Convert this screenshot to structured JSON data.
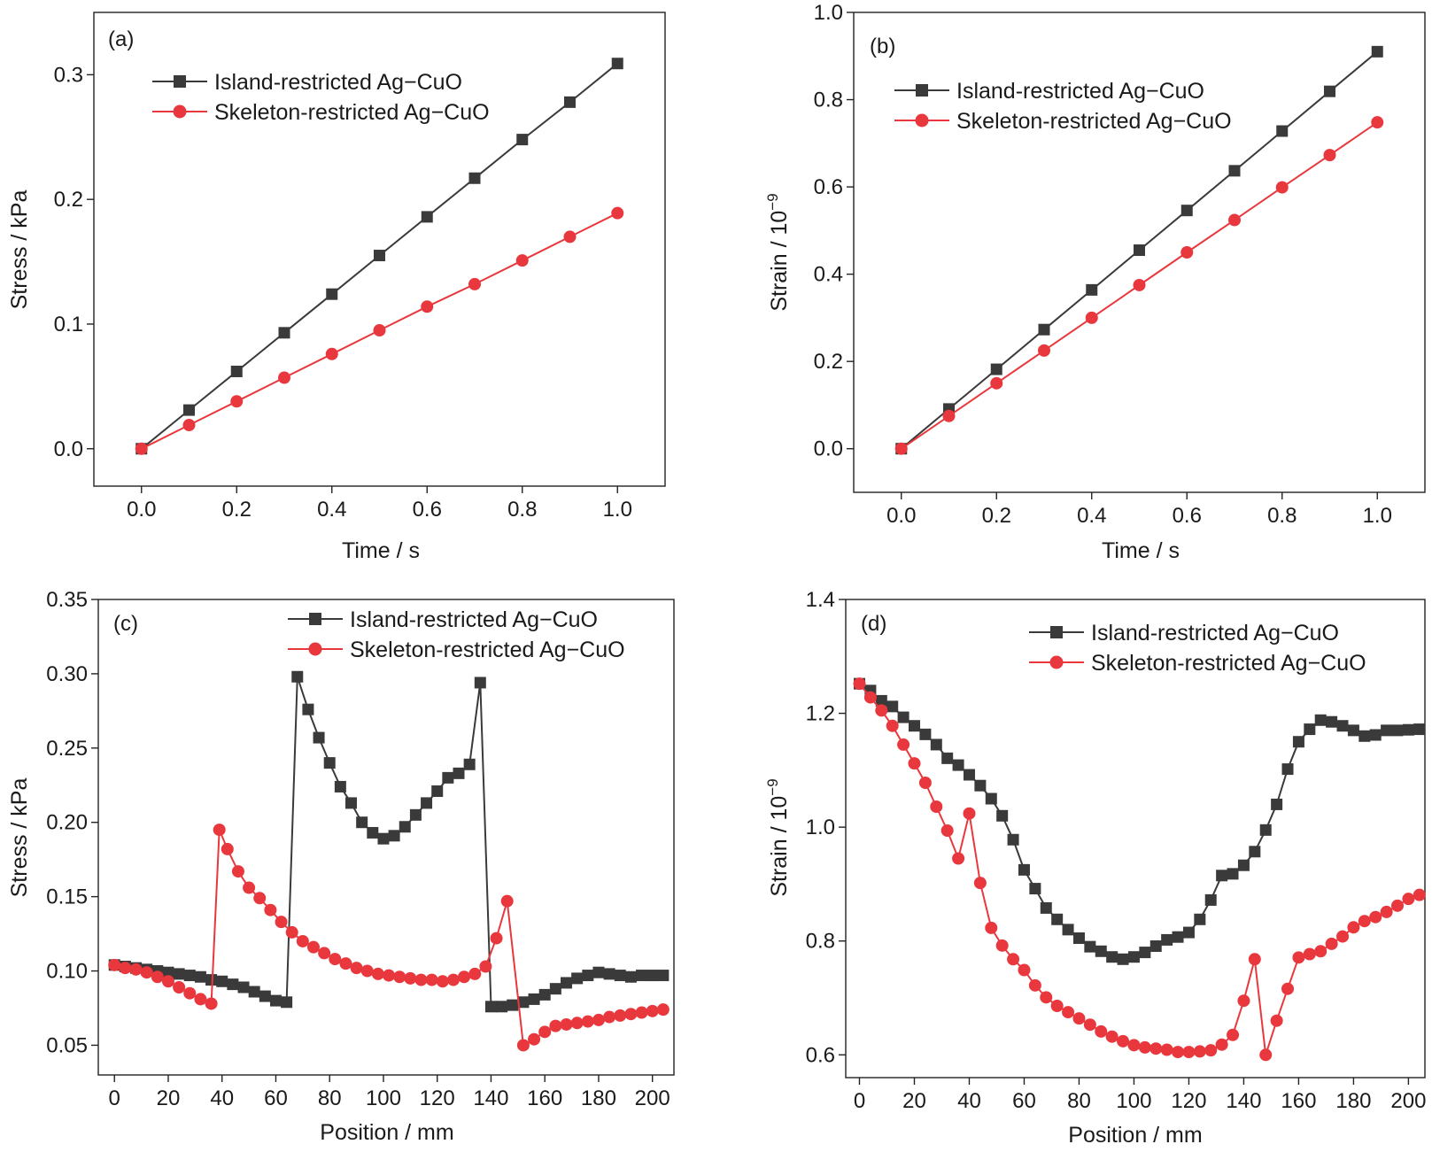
{
  "colors": {
    "island": "#3a3a3a",
    "skeleton": "#e8383d",
    "frame": "#222222",
    "background": "#ffffff"
  },
  "icons": {
    "island_marker": "square-marker",
    "skeleton_marker": "circle-marker"
  },
  "chart_data": [
    {
      "id": "a",
      "type": "line",
      "panel_label": "(a)",
      "xlabel": "Time / s",
      "ylabel": "Stress / kPa",
      "xlim": [
        -0.1,
        1.1
      ],
      "ylim": [
        -0.03,
        0.35
      ],
      "xticks": [
        0.0,
        0.2,
        0.4,
        0.6,
        0.8,
        1.0
      ],
      "xtick_labels": [
        "0.0",
        "0.2",
        "0.4",
        "0.6",
        "0.8",
        "1.0"
      ],
      "yticks": [
        0.0,
        0.1,
        0.2,
        0.3
      ],
      "ytick_labels": [
        "0.0",
        "0.1",
        "0.2",
        "0.3"
      ],
      "grid": false,
      "legend_position": "top-left",
      "series": [
        {
          "name": "Island-restricted Ag−CuO",
          "key": "island",
          "x": [
            0,
            0.1,
            0.2,
            0.3,
            0.4,
            0.5,
            0.6,
            0.7,
            0.8,
            0.9,
            1.0
          ],
          "y": [
            0.0,
            0.031,
            0.062,
            0.093,
            0.124,
            0.155,
            0.186,
            0.217,
            0.248,
            0.278,
            0.309
          ]
        },
        {
          "name": "Skeleton-restricted Ag−CuO",
          "key": "skeleton",
          "x": [
            0,
            0.1,
            0.2,
            0.3,
            0.4,
            0.5,
            0.6,
            0.7,
            0.8,
            0.9,
            1.0
          ],
          "y": [
            0.0,
            0.019,
            0.038,
            0.057,
            0.076,
            0.095,
            0.114,
            0.132,
            0.151,
            0.17,
            0.189
          ]
        }
      ]
    },
    {
      "id": "b",
      "type": "line",
      "panel_label": "(b)",
      "xlabel": "Time / s",
      "ylabel": "Strain / 10",
      "ylabel_exponent": "−9",
      "xlim": [
        -0.1,
        1.1
      ],
      "ylim": [
        -0.1,
        1.0
      ],
      "xticks": [
        0.0,
        0.2,
        0.4,
        0.6,
        0.8,
        1.0
      ],
      "xtick_labels": [
        "0.0",
        "0.2",
        "0.4",
        "0.6",
        "0.8",
        "1.0"
      ],
      "yticks": [
        0.0,
        0.2,
        0.4,
        0.6,
        0.8,
        1.0
      ],
      "ytick_labels": [
        "0.0",
        "0.2",
        "0.4",
        "0.6",
        "0.8",
        "1.0"
      ],
      "grid": false,
      "legend_position": "top-left",
      "series": [
        {
          "name": "Island-restricted Ag−CuO",
          "key": "island",
          "x": [
            0,
            0.1,
            0.2,
            0.3,
            0.4,
            0.5,
            0.6,
            0.7,
            0.8,
            0.9,
            1.0
          ],
          "y": [
            0.0,
            0.091,
            0.182,
            0.273,
            0.364,
            0.455,
            0.546,
            0.637,
            0.728,
            0.819,
            0.91
          ]
        },
        {
          "name": "Skeleton-restricted Ag−CuO",
          "key": "skeleton",
          "x": [
            0,
            0.1,
            0.2,
            0.3,
            0.4,
            0.5,
            0.6,
            0.7,
            0.8,
            0.9,
            1.0
          ],
          "y": [
            0.0,
            0.075,
            0.15,
            0.225,
            0.3,
            0.375,
            0.45,
            0.524,
            0.599,
            0.673,
            0.748
          ]
        }
      ]
    },
    {
      "id": "c",
      "type": "line",
      "panel_label": "(c)",
      "xlabel": "Position / mm",
      "ylabel": "Stress / kPa",
      "xlim": [
        -6,
        208
      ],
      "ylim": [
        0.03,
        0.35
      ],
      "xticks": [
        0,
        20,
        40,
        60,
        80,
        100,
        120,
        140,
        160,
        180,
        200
      ],
      "xtick_labels": [
        "0",
        "20",
        "40",
        "60",
        "80",
        "100",
        "120",
        "140",
        "160",
        "180",
        "200"
      ],
      "yticks": [
        0.05,
        0.1,
        0.15,
        0.2,
        0.25,
        0.3,
        0.35
      ],
      "ytick_labels": [
        "0.05",
        "0.10",
        "0.15",
        "0.20",
        "0.25",
        "0.30",
        "0.35"
      ],
      "grid": false,
      "legend_position": "top-right",
      "series": [
        {
          "name": "Island-restricted Ag−CuO",
          "key": "island",
          "x": [
            0,
            4,
            8,
            12,
            16,
            20,
            24,
            28,
            32,
            36,
            40,
            44,
            48,
            52,
            56,
            60,
            64,
            68,
            72,
            76,
            80,
            84,
            88,
            92,
            96,
            100,
            104,
            108,
            112,
            116,
            120,
            124,
            128,
            132,
            136,
            140,
            144,
            148,
            152,
            156,
            160,
            164,
            168,
            172,
            176,
            180,
            184,
            188,
            192,
            196,
            200,
            204
          ],
          "y": [
            0.104,
            0.103,
            0.102,
            0.101,
            0.1,
            0.099,
            0.098,
            0.097,
            0.096,
            0.094,
            0.093,
            0.091,
            0.089,
            0.086,
            0.083,
            0.08,
            0.079,
            0.298,
            0.276,
            0.257,
            0.24,
            0.224,
            0.213,
            0.2,
            0.193,
            0.189,
            0.191,
            0.197,
            0.205,
            0.213,
            0.221,
            0.23,
            0.233,
            0.239,
            0.294,
            0.076,
            0.076,
            0.077,
            0.079,
            0.081,
            0.084,
            0.088,
            0.092,
            0.095,
            0.097,
            0.099,
            0.098,
            0.097,
            0.096,
            0.097,
            0.097,
            0.097
          ]
        },
        {
          "name": "Skeleton-restricted Ag−CuO",
          "key": "skeleton",
          "x": [
            0,
            4,
            8,
            12,
            16,
            20,
            24,
            28,
            32,
            36,
            39,
            42,
            46,
            50,
            54,
            58,
            62,
            66,
            70,
            74,
            78,
            82,
            86,
            90,
            94,
            98,
            102,
            106,
            110,
            114,
            118,
            122,
            126,
            130,
            134,
            138,
            142,
            146,
            152,
            156,
            160,
            164,
            168,
            172,
            176,
            180,
            184,
            188,
            192,
            196,
            200,
            204
          ],
          "y": [
            0.104,
            0.102,
            0.101,
            0.099,
            0.096,
            0.093,
            0.089,
            0.085,
            0.081,
            0.078,
            0.195,
            0.182,
            0.167,
            0.156,
            0.149,
            0.141,
            0.133,
            0.126,
            0.12,
            0.116,
            0.112,
            0.108,
            0.105,
            0.102,
            0.1,
            0.098,
            0.097,
            0.096,
            0.095,
            0.094,
            0.094,
            0.093,
            0.094,
            0.096,
            0.098,
            0.103,
            0.122,
            0.147,
            0.05,
            0.054,
            0.059,
            0.063,
            0.064,
            0.065,
            0.066,
            0.067,
            0.069,
            0.07,
            0.071,
            0.072,
            0.073,
            0.074
          ]
        }
      ]
    },
    {
      "id": "d",
      "type": "line",
      "panel_label": "(d)",
      "xlabel": "Position / mm",
      "ylabel": "Strain / 10",
      "ylabel_exponent": "−9",
      "xlim": [
        -5,
        206
      ],
      "ylim": [
        0.56,
        1.4
      ],
      "xticks": [
        0,
        20,
        40,
        60,
        80,
        100,
        120,
        140,
        160,
        180,
        200
      ],
      "xtick_labels": [
        "0",
        "20",
        "40",
        "60",
        "80",
        "100",
        "120",
        "140",
        "160",
        "180",
        "200"
      ],
      "yticks": [
        0.6,
        0.8,
        1.0,
        1.2,
        1.4
      ],
      "ytick_labels": [
        "0.6",
        "0.8",
        "1.0",
        "1.2",
        "1.4"
      ],
      "grid": false,
      "legend_position": "top-right",
      "series": [
        {
          "name": "Island-restricted Ag−CuO",
          "key": "island",
          "x": [
            0,
            4,
            8,
            12,
            16,
            20,
            24,
            28,
            32,
            36,
            40,
            44,
            48,
            52,
            56,
            60,
            64,
            68,
            72,
            76,
            80,
            84,
            88,
            92,
            96,
            100,
            104,
            108,
            112,
            116,
            120,
            124,
            128,
            132,
            136,
            140,
            144,
            148,
            152,
            156,
            160,
            164,
            168,
            172,
            176,
            180,
            184,
            188,
            192,
            196,
            200,
            204
          ],
          "y": [
            1.252,
            1.24,
            1.222,
            1.212,
            1.193,
            1.178,
            1.163,
            1.145,
            1.121,
            1.109,
            1.092,
            1.073,
            1.05,
            1.02,
            0.978,
            0.925,
            0.892,
            0.858,
            0.838,
            0.82,
            0.805,
            0.79,
            0.782,
            0.772,
            0.768,
            0.772,
            0.78,
            0.791,
            0.802,
            0.807,
            0.815,
            0.838,
            0.872,
            0.915,
            0.918,
            0.933,
            0.957,
            0.995,
            1.04,
            1.102,
            1.15,
            1.172,
            1.188,
            1.185,
            1.178,
            1.17,
            1.16,
            1.162,
            1.17,
            1.17,
            1.171,
            1.172
          ]
        },
        {
          "name": "Skeleton-restricted Ag−CuO",
          "key": "skeleton",
          "x": [
            0,
            4,
            8,
            12,
            16,
            20,
            24,
            28,
            32,
            36,
            40,
            44,
            48,
            52,
            56,
            60,
            64,
            68,
            72,
            76,
            80,
            84,
            88,
            92,
            96,
            100,
            104,
            108,
            112,
            116,
            120,
            124,
            128,
            132,
            136,
            140,
            144,
            148,
            152,
            156,
            160,
            164,
            168,
            172,
            176,
            180,
            184,
            188,
            192,
            196,
            200,
            204
          ],
          "y": [
            1.252,
            1.228,
            1.205,
            1.178,
            1.145,
            1.112,
            1.078,
            1.036,
            0.994,
            0.945,
            1.024,
            0.902,
            0.823,
            0.792,
            0.768,
            0.749,
            0.722,
            0.701,
            0.686,
            0.675,
            0.664,
            0.653,
            0.641,
            0.632,
            0.624,
            0.617,
            0.613,
            0.611,
            0.609,
            0.605,
            0.605,
            0.606,
            0.608,
            0.618,
            0.635,
            0.695,
            0.768,
            0.6,
            0.66,
            0.716,
            0.771,
            0.777,
            0.782,
            0.795,
            0.808,
            0.824,
            0.835,
            0.842,
            0.851,
            0.862,
            0.874,
            0.881
          ]
        }
      ]
    }
  ]
}
